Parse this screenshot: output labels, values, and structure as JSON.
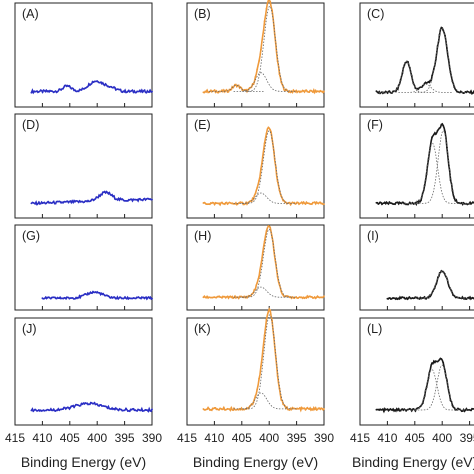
{
  "chart_data": [
    {
      "panel": "(A)",
      "type": "line",
      "color": "#2b2fc4",
      "xlim": [
        415,
        390
      ],
      "peaks": [
        {
          "center": 400.2,
          "height": 0.1,
          "width": 1.4
        },
        {
          "center": 405.5,
          "height": 0.05,
          "width": 0.8
        },
        {
          "center": 397.5,
          "height": 0.03,
          "width": 1.0
        }
      ],
      "baseline": 0.05,
      "fit": false,
      "xrange": [
        412,
        390
      ]
    },
    {
      "panel": "(B)",
      "type": "line",
      "color": "#ef9a3c",
      "xlim": [
        415,
        390
      ],
      "peaks": [
        {
          "center": 399.9,
          "height": 0.82,
          "width": 1.0
        },
        {
          "center": 401.5,
          "height": 0.18,
          "width": 1.0
        },
        {
          "center": 406.0,
          "height": 0.06,
          "width": 0.7
        }
      ],
      "baseline": 0.05,
      "fit": true,
      "xrange": [
        412,
        390
      ]
    },
    {
      "panel": "(C)",
      "type": "line",
      "color": "#1a1a1a",
      "xlim": [
        415,
        390
      ],
      "peaks": [
        {
          "center": 400.0,
          "height": 0.62,
          "width": 1.0
        },
        {
          "center": 403.0,
          "height": 0.08,
          "width": 0.9
        },
        {
          "center": 406.5,
          "height": 0.3,
          "width": 0.8
        }
      ],
      "baseline": 0.04,
      "fit": true,
      "xrange": [
        412,
        390
      ]
    },
    {
      "panel": "(D)",
      "type": "line",
      "color": "#2b2fc4",
      "xlim": [
        415,
        390
      ],
      "peaks": [
        {
          "center": 398.5,
          "height": 0.08,
          "width": 1.2
        }
      ],
      "baseline": 0.04,
      "slope": 0.04,
      "fit": false,
      "xrange": [
        412,
        390
      ]
    },
    {
      "panel": "(E)",
      "type": "line",
      "color": "#ef9a3c",
      "xlim": [
        415,
        390
      ],
      "peaks": [
        {
          "center": 400.0,
          "height": 0.7,
          "width": 1.0
        },
        {
          "center": 401.5,
          "height": 0.1,
          "width": 1.0
        }
      ],
      "baseline": 0.04,
      "fit": true,
      "xrange": [
        412,
        390
      ]
    },
    {
      "panel": "(F)",
      "type": "line",
      "color": "#1a1a1a",
      "xlim": [
        415,
        390
      ],
      "peaks": [
        {
          "center": 399.8,
          "height": 0.7,
          "width": 0.9
        },
        {
          "center": 401.8,
          "height": 0.58,
          "width": 0.9
        }
      ],
      "baseline": 0.04,
      "fit": true,
      "xrange": [
        412,
        390
      ]
    },
    {
      "panel": "(G)",
      "type": "line",
      "color": "#2b2fc4",
      "xlim": [
        415,
        390
      ],
      "peaks": [
        {
          "center": 400.5,
          "height": 0.07,
          "width": 1.5
        }
      ],
      "baseline": 0.04,
      "fit": false,
      "xrange": [
        410,
        390
      ]
    },
    {
      "panel": "(H)",
      "type": "line",
      "color": "#ef9a3c",
      "xlim": [
        415,
        390
      ],
      "peaks": [
        {
          "center": 400.0,
          "height": 0.8,
          "width": 1.0
        },
        {
          "center": 401.5,
          "height": 0.12,
          "width": 1.0
        }
      ],
      "baseline": 0.05,
      "fit": true,
      "xrange": [
        412,
        390
      ]
    },
    {
      "panel": "(I)",
      "type": "line",
      "color": "#1a1a1a",
      "xlim": [
        415,
        390
      ],
      "peaks": [
        {
          "center": 400.0,
          "height": 0.32,
          "width": 1.0
        }
      ],
      "baseline": 0.04,
      "fit": true,
      "xrange": [
        410,
        390
      ]
    },
    {
      "panel": "(J)",
      "type": "line",
      "color": "#2b2fc4",
      "xlim": [
        415,
        390
      ],
      "peaks": [
        {
          "center": 401.5,
          "height": 0.06,
          "width": 2.5
        }
      ],
      "baseline": 0.04,
      "fit": false,
      "xrange": [
        412,
        390
      ]
    },
    {
      "panel": "(K)",
      "type": "line",
      "color": "#ef9a3c",
      "xlim": [
        415,
        390
      ],
      "peaks": [
        {
          "center": 399.9,
          "height": 0.88,
          "width": 1.0
        },
        {
          "center": 401.5,
          "height": 0.15,
          "width": 1.0
        }
      ],
      "baseline": 0.05,
      "fit": true,
      "xrange": [
        412,
        390
      ]
    },
    {
      "panel": "(L)",
      "type": "line",
      "color": "#1a1a1a",
      "xlim": [
        415,
        390
      ],
      "peaks": [
        {
          "center": 400.0,
          "height": 0.42,
          "width": 0.9
        },
        {
          "center": 401.9,
          "height": 0.38,
          "width": 0.9
        }
      ],
      "baseline": 0.04,
      "fit": true,
      "xrange": [
        412,
        390
      ]
    }
  ],
  "x_ticks": [
    "415",
    "410",
    "405",
    "400",
    "395",
    "390"
  ],
  "x_tick_values": [
    415,
    410,
    405,
    400,
    395,
    390
  ],
  "xlabel": "Binding Energy (eV)"
}
